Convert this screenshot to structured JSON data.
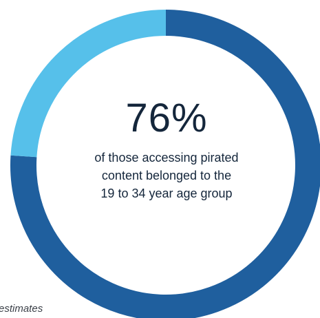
{
  "chart_data": {
    "type": "pie",
    "categories": [
      "",
      ""
    ],
    "values": [
      76,
      24
    ],
    "colors": [
      "#1f5f9e",
      "#56c0ea"
    ],
    "headline": "76%",
    "caption_lines": [
      "of those accessing pirated",
      "content belonged to the",
      "19 to 34 year age group"
    ]
  },
  "footnote": "estimates"
}
